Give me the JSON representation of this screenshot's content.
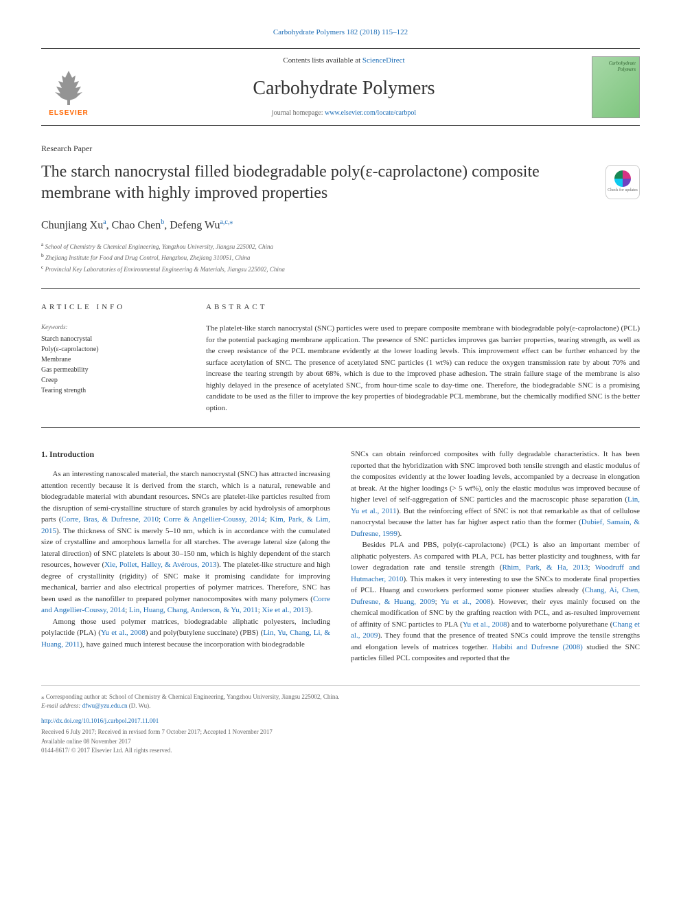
{
  "header": {
    "citation": "Carbohydrate Polymers 182 (2018) 115–122",
    "contents_text": "Contents lists available at ",
    "contents_link": "ScienceDirect",
    "journal_name": "Carbohydrate Polymers",
    "homepage_text": "journal homepage: ",
    "homepage_link": "www.elsevier.com/locate/carbpol",
    "elsevier_label": "ELSEVIER",
    "cover_text": "Carbohydrate Polymers"
  },
  "article": {
    "type": "Research Paper",
    "title": "The starch nanocrystal filled biodegradable poly(ε-caprolactone) composite membrane with highly improved properties",
    "crossmark_text": "Check for updates"
  },
  "authors": {
    "line": "Chunjiang Xu",
    "a1_sup": "a",
    "a2_name": ", Chao Chen",
    "a2_sup": "b",
    "a3_name": ", Defeng Wu",
    "a3_sup": "a,c,",
    "a3_star": "⁎"
  },
  "affiliations": {
    "a": "School of Chemistry & Chemical Engineering, Yangzhou University, Jiangsu 225002, China",
    "b": "Zhejiang Institute for Food and Drug Control, Hangzhou, Zhejiang 310051, China",
    "c": "Provincial Key Laboratories of Environmental Engineering & Materials, Jiangsu 225002, China"
  },
  "info": {
    "header": "ARTICLE INFO",
    "keywords_label": "Keywords:",
    "keywords": "Starch nanocrystal\nPoly(ε-caprolactone)\nMembrane\nGas permeability\nCreep\nTearing strength"
  },
  "abstract": {
    "header": "ABSTRACT",
    "text": "The platelet-like starch nanocrystal (SNC) particles were used to prepare composite membrane with biodegradable poly(ε-caprolactone) (PCL) for the potential packaging membrane application. The presence of SNC particles improves gas barrier properties, tearing strength, as well as the creep resistance of the PCL membrane evidently at the lower loading levels. This improvement effect can be further enhanced by the surface acetylation of SNC. The presence of acetylated SNC particles (1 wt%) can reduce the oxygen transmission rate by about 70% and increase the tearing strength by about 68%, which is due to the improved phase adhesion. The strain failure stage of the membrane is also highly delayed in the presence of acetylated SNC, from hour-time scale to day-time one. Therefore, the biodegradable SNC is a promising candidate to be used as the filler to improve the key properties of biodegradable PCL membrane, but the chemically modified SNC is the better option."
  },
  "body": {
    "section_title": "1. Introduction",
    "col1_p1a": "As an interesting nanoscaled material, the starch nanocrystal (SNC) has attracted increasing attention recently because it is derived from the starch, which is a natural, renewable and biodegradable material with abundant resources. SNCs are platelet-like particles resulted from the disruption of semi-crystalline structure of starch granules by acid hydrolysis of amorphous parts (",
    "col1_p1_ref1": "Corre, Bras, & Dufresne, 2010",
    "col1_p1b": "; ",
    "col1_p1_ref2": "Corre & Angellier-Coussy, 2014",
    "col1_p1c": "; ",
    "col1_p1_ref3": "Kim, Park, & Lim, 2015",
    "col1_p1d": "). The thickness of SNC is merely 5–10 nm, which is in accordance with the cumulated size of crystalline and amorphous lamella for all starches. The average lateral size (along the lateral direction) of SNC platelets is about 30–150 nm, which is highly dependent of the starch resources, however (",
    "col1_p1_ref4": "Xie, Pollet, Halley, & Avérous, 2013",
    "col1_p1e": "). The platelet-like structure and high degree of crystallinity (rigidity) of SNC make it promising candidate for improving mechanical, barrier and also electrical properties of polymer matrices. Therefore, SNC has been used as the nanofiller to prepared polymer nanocomposites with many polymers (",
    "col1_p1_ref5": "Corre and Angellier-Coussy, 2014",
    "col1_p1f": "; ",
    "col1_p1_ref6": "Lin, Huang, Chang, Anderson, & Yu, 2011",
    "col1_p1g": "; ",
    "col1_p1_ref7": "Xie et al., 2013",
    "col1_p1h": ").",
    "col1_p2a": "Among those used polymer matrices, biodegradable aliphatic polyesters, including polylactide (PLA) (",
    "col1_p2_ref1": "Yu et al., 2008",
    "col1_p2b": ") and poly(butylene succinate) (PBS) (",
    "col1_p2_ref2": "Lin, Yu, Chang, Li, & Huang, 2011",
    "col1_p2c": "), have gained much interest because the incorporation with biodegradable",
    "col2_p1a": "SNCs can obtain reinforced composites with fully degradable characteristics. It has been reported that the hybridization with SNC improved both tensile strength and elastic modulus of the composites evidently at the lower loading levels, accompanied by a decrease in elongation at break. At the higher loadings (> 5 wt%), only the elastic modulus was improved because of higher level of self-aggregation of SNC particles and the macroscopic phase separation (",
    "col2_p1_ref1": "Lin, Yu et al., 2011",
    "col2_p1b": "). But the reinforcing effect of SNC is not that remarkable as that of cellulose nanocrystal because the latter has far higher aspect ratio than the former (",
    "col2_p1_ref2": "Dubief, Samain, & Dufresne, 1999",
    "col2_p1c": ").",
    "col2_p2a": "Besides PLA and PBS, poly(ε-caprolactone) (PCL) is also an important member of aliphatic polyesters. As compared with PLA, PCL has better plasticity and toughness, with far lower degradation rate and tensile strength (",
    "col2_p2_ref1": "Rhim, Park, & Ha, 2013",
    "col2_p2b": "; ",
    "col2_p2_ref2": "Woodruff and Hutmacher, 2010",
    "col2_p2c": "). This makes it very interesting to use the SNCs to moderate final properties of PCL. Huang and coworkers performed some pioneer studies already (",
    "col2_p2_ref3": "Chang, Ai, Chen, Dufresne, & Huang, 2009",
    "col2_p2d": "; ",
    "col2_p2_ref4": "Yu et al., 2008",
    "col2_p2e": "). However, their eyes mainly focused on the chemical modification of SNC by the grafting reaction with PCL, and as-resulted improvement of affinity of SNC particles to PLA (",
    "col2_p2_ref5": "Yu et al., 2008",
    "col2_p2f": ") and to waterborne polyurethane (",
    "col2_p2_ref6": "Chang et al., 2009",
    "col2_p2g": "). They found that the presence of treated SNCs could improve the tensile strengths and elongation levels of matrices together. ",
    "col2_p2_ref7": "Habibi and Dufresne (2008)",
    "col2_p2h": " studied the SNC particles filled PCL composites and reported that the"
  },
  "footer": {
    "corr_label": "⁎ Corresponding author at: School of Chemistry & Chemical Engineering, Yangzhou University, Jiangsu 225002, China.",
    "email_label": "E-mail address: ",
    "email": "dfwu@yzu.edu.cn",
    "email_suffix": " (D. Wu).",
    "doi": "http://dx.doi.org/10.1016/j.carbpol.2017.11.001",
    "dates": "Received 6 July 2017; Received in revised form 7 October 2017; Accepted 1 November 2017",
    "available": "Available online 08 November 2017",
    "copyright": "0144-8617/ © 2017 Elsevier Ltd. All rights reserved."
  },
  "colors": {
    "link": "#1a6bb5",
    "elsevier_orange": "#ff6600",
    "text": "#333333",
    "muted": "#666666"
  }
}
